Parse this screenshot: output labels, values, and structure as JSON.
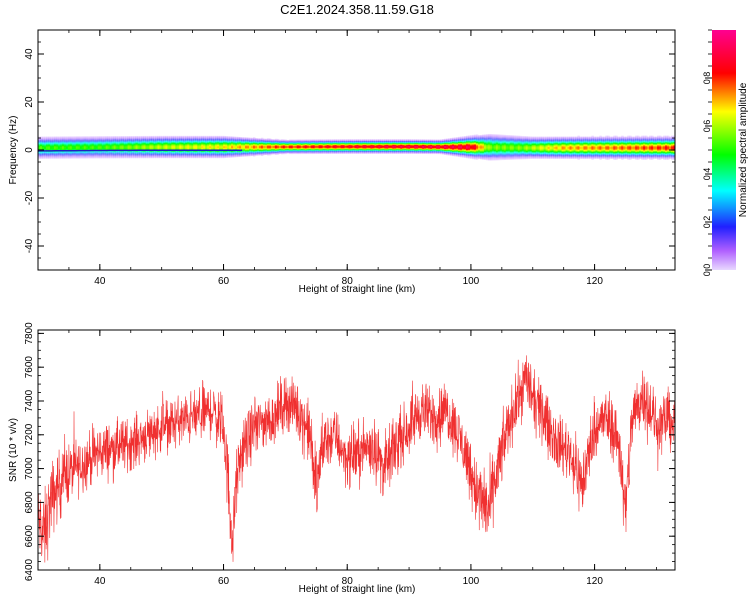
{
  "figure_title": "C2E1.2024.358.11.59.G18",
  "chart_data": [
    {
      "type": "heatmap",
      "title": "",
      "xlabel": "Height of straight line (km)",
      "ylabel": "Frequency (Hz)",
      "xlim": [
        30,
        133
      ],
      "ylim": [
        -50,
        50
      ],
      "xticks": [
        40,
        60,
        80,
        100,
        120
      ],
      "yticks": [
        -40,
        -20,
        0,
        20,
        40
      ],
      "colorbar": {
        "label": "Normalized spectral amplitude",
        "range": [
          0.0,
          1.0
        ],
        "ticks": [
          0.0,
          0.2,
          0.4,
          0.6,
          0.8
        ],
        "colors": [
          "#e8d8ff",
          "#9000ff",
          "#0000ff",
          "#00ffff",
          "#00ff00",
          "#ffff00",
          "#ff0000",
          "#ff0090"
        ]
      },
      "band": {
        "center_hz": [
          {
            "x": 30,
            "f": 1.0
          },
          {
            "x": 40,
            "f": 1.2
          },
          {
            "x": 50,
            "f": 1.3
          },
          {
            "x": 60,
            "f": 1.3
          },
          {
            "x": 70,
            "f": 1.4
          },
          {
            "x": 80,
            "f": 1.5
          },
          {
            "x": 90,
            "f": 1.5
          },
          {
            "x": 100,
            "f": 1.3
          },
          {
            "x": 110,
            "f": 1.0
          },
          {
            "x": 120,
            "f": 1.0
          },
          {
            "x": 133,
            "f": 1.0
          }
        ],
        "peak_amplitude": [
          {
            "x": 30,
            "v": 0.55
          },
          {
            "x": 40,
            "v": 0.55
          },
          {
            "x": 50,
            "v": 0.65
          },
          {
            "x": 60,
            "v": 0.7
          },
          {
            "x": 70,
            "v": 0.85
          },
          {
            "x": 80,
            "v": 0.9
          },
          {
            "x": 90,
            "v": 0.95
          },
          {
            "x": 100,
            "v": 0.95
          },
          {
            "x": 103,
            "v": 0.6
          },
          {
            "x": 108,
            "v": 0.6
          },
          {
            "x": 115,
            "v": 0.75
          },
          {
            "x": 125,
            "v": 0.8
          },
          {
            "x": 133,
            "v": 0.85
          }
        ],
        "halo_halfwidth_hz": [
          {
            "x": 30,
            "w": 5
          },
          {
            "x": 60,
            "w": 5
          },
          {
            "x": 70,
            "w": 3
          },
          {
            "x": 95,
            "w": 3
          },
          {
            "x": 103,
            "w": 6
          },
          {
            "x": 110,
            "w": 5
          },
          {
            "x": 133,
            "w": 5
          }
        ]
      }
    },
    {
      "type": "line",
      "title": "",
      "xlabel": "Height of straight line (km)",
      "ylabel": "SNR (10 * v/v)",
      "xlim": [
        30,
        133
      ],
      "ylim": [
        6400,
        7820
      ],
      "xticks": [
        40,
        60,
        80,
        100,
        120
      ],
      "yticks": [
        6400,
        6600,
        6800,
        7000,
        7200,
        7400,
        7600,
        7800
      ],
      "line_color": "#f03030",
      "series": [
        {
          "name": "",
          "x": [
            30,
            31,
            32,
            34,
            36,
            38,
            40,
            45,
            50,
            55,
            58,
            60,
            61,
            61.5,
            62,
            63,
            65,
            68,
            70,
            72,
            74,
            75,
            76,
            78,
            80,
            82,
            84,
            86,
            88,
            90,
            92,
            94,
            96,
            98,
            100,
            101,
            102,
            103,
            104,
            106,
            108,
            109,
            110,
            112,
            114,
            116,
            118,
            120,
            122,
            124,
            125,
            126,
            128,
            130,
            132,
            133
          ],
          "y": [
            6700,
            6600,
            6800,
            6950,
            7000,
            7050,
            7100,
            7150,
            7250,
            7300,
            7350,
            7250,
            6800,
            6550,
            6900,
            7100,
            7250,
            7300,
            7400,
            7350,
            7200,
            6850,
            7150,
            7200,
            7050,
            7100,
            7150,
            7000,
            7150,
            7250,
            7350,
            7300,
            7350,
            7200,
            7000,
            6850,
            6800,
            6750,
            6950,
            7250,
            7450,
            7550,
            7400,
            7300,
            7150,
            7100,
            6900,
            7250,
            7300,
            7150,
            6700,
            7300,
            7450,
            7250,
            7300,
            7250
          ],
          "noise_half_range": [
            220,
            260,
            240,
            200,
            180,
            170,
            170,
            160,
            160,
            160,
            170,
            200,
            250,
            200,
            200,
            180,
            170,
            180,
            170,
            170,
            200,
            250,
            200,
            170,
            170,
            180,
            180,
            200,
            180,
            170,
            180,
            170,
            180,
            180,
            200,
            220,
            230,
            250,
            220,
            180,
            180,
            200,
            180,
            170,
            180,
            180,
            220,
            180,
            180,
            200,
            250,
            200,
            200,
            180,
            180,
            180
          ]
        }
      ]
    }
  ]
}
